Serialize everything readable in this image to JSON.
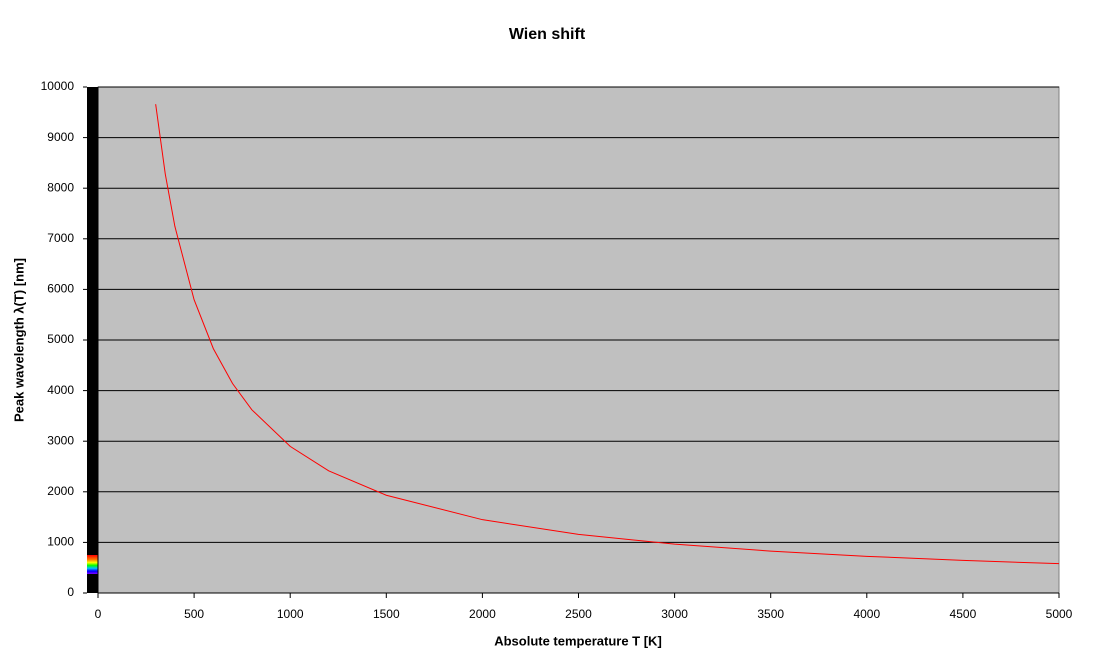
{
  "chart_data": {
    "type": "line",
    "title": "Wien shift",
    "x_label": "Absolute temperature T [K]",
    "y_label": "Peak wavelength λ(T) [nm]",
    "x": [
      300,
      350,
      400,
      500,
      600,
      700,
      800,
      1000,
      1200,
      1500,
      2000,
      2500,
      3000,
      3500,
      4000,
      4500,
      5000
    ],
    "series": [
      {
        "name": "λ(T)",
        "color": "#ff0000",
        "values": [
          9660,
          8280,
          7245,
          5796,
          4830,
          4140,
          3623,
          2898,
          2415,
          1932,
          1449,
          1159,
          966,
          828,
          725,
          644,
          580
        ]
      }
    ],
    "xlim": [
      0,
      5000
    ],
    "xticks": [
      0,
      500,
      1000,
      1500,
      2000,
      2500,
      3000,
      3500,
      4000,
      4500,
      5000
    ],
    "ylim": [
      0,
      10000
    ],
    "yticks": [
      0,
      1000,
      2000,
      3000,
      4000,
      5000,
      6000,
      7000,
      8000,
      9000,
      10000
    ],
    "grid": true
  }
}
